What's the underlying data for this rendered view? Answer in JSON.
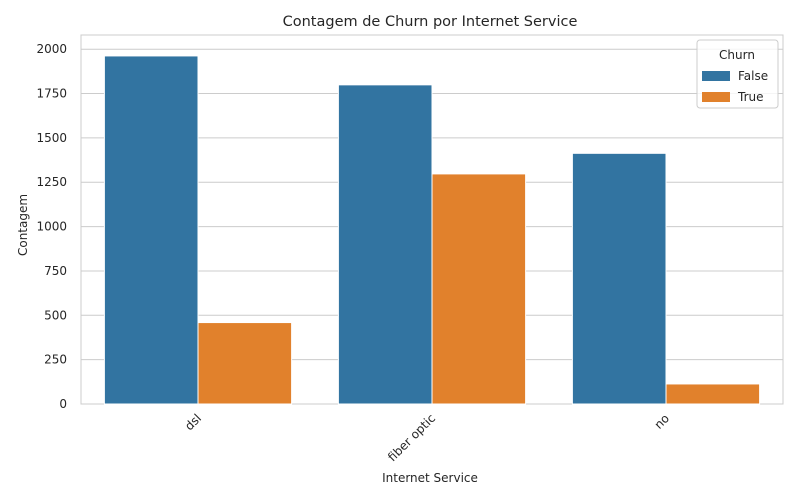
{
  "chart_data": {
    "type": "bar",
    "title": "Contagem de Churn por Internet Service",
    "xlabel": "Internet Service",
    "ylabel": "Contagem",
    "categories": [
      "dsl",
      "fiber optic",
      "no"
    ],
    "series": [
      {
        "name": "False",
        "values": [
          1962,
          1799,
          1413
        ],
        "color": "#3274a1"
      },
      {
        "name": "True",
        "values": [
          459,
          1297,
          113
        ],
        "color": "#e1812c"
      }
    ],
    "ylim": [
      0,
      2080
    ],
    "yticks": [
      0,
      250,
      500,
      750,
      1000,
      1250,
      1500,
      1750,
      2000
    ],
    "grid": true,
    "legend": {
      "title": "Churn",
      "placement": "top-right"
    }
  }
}
